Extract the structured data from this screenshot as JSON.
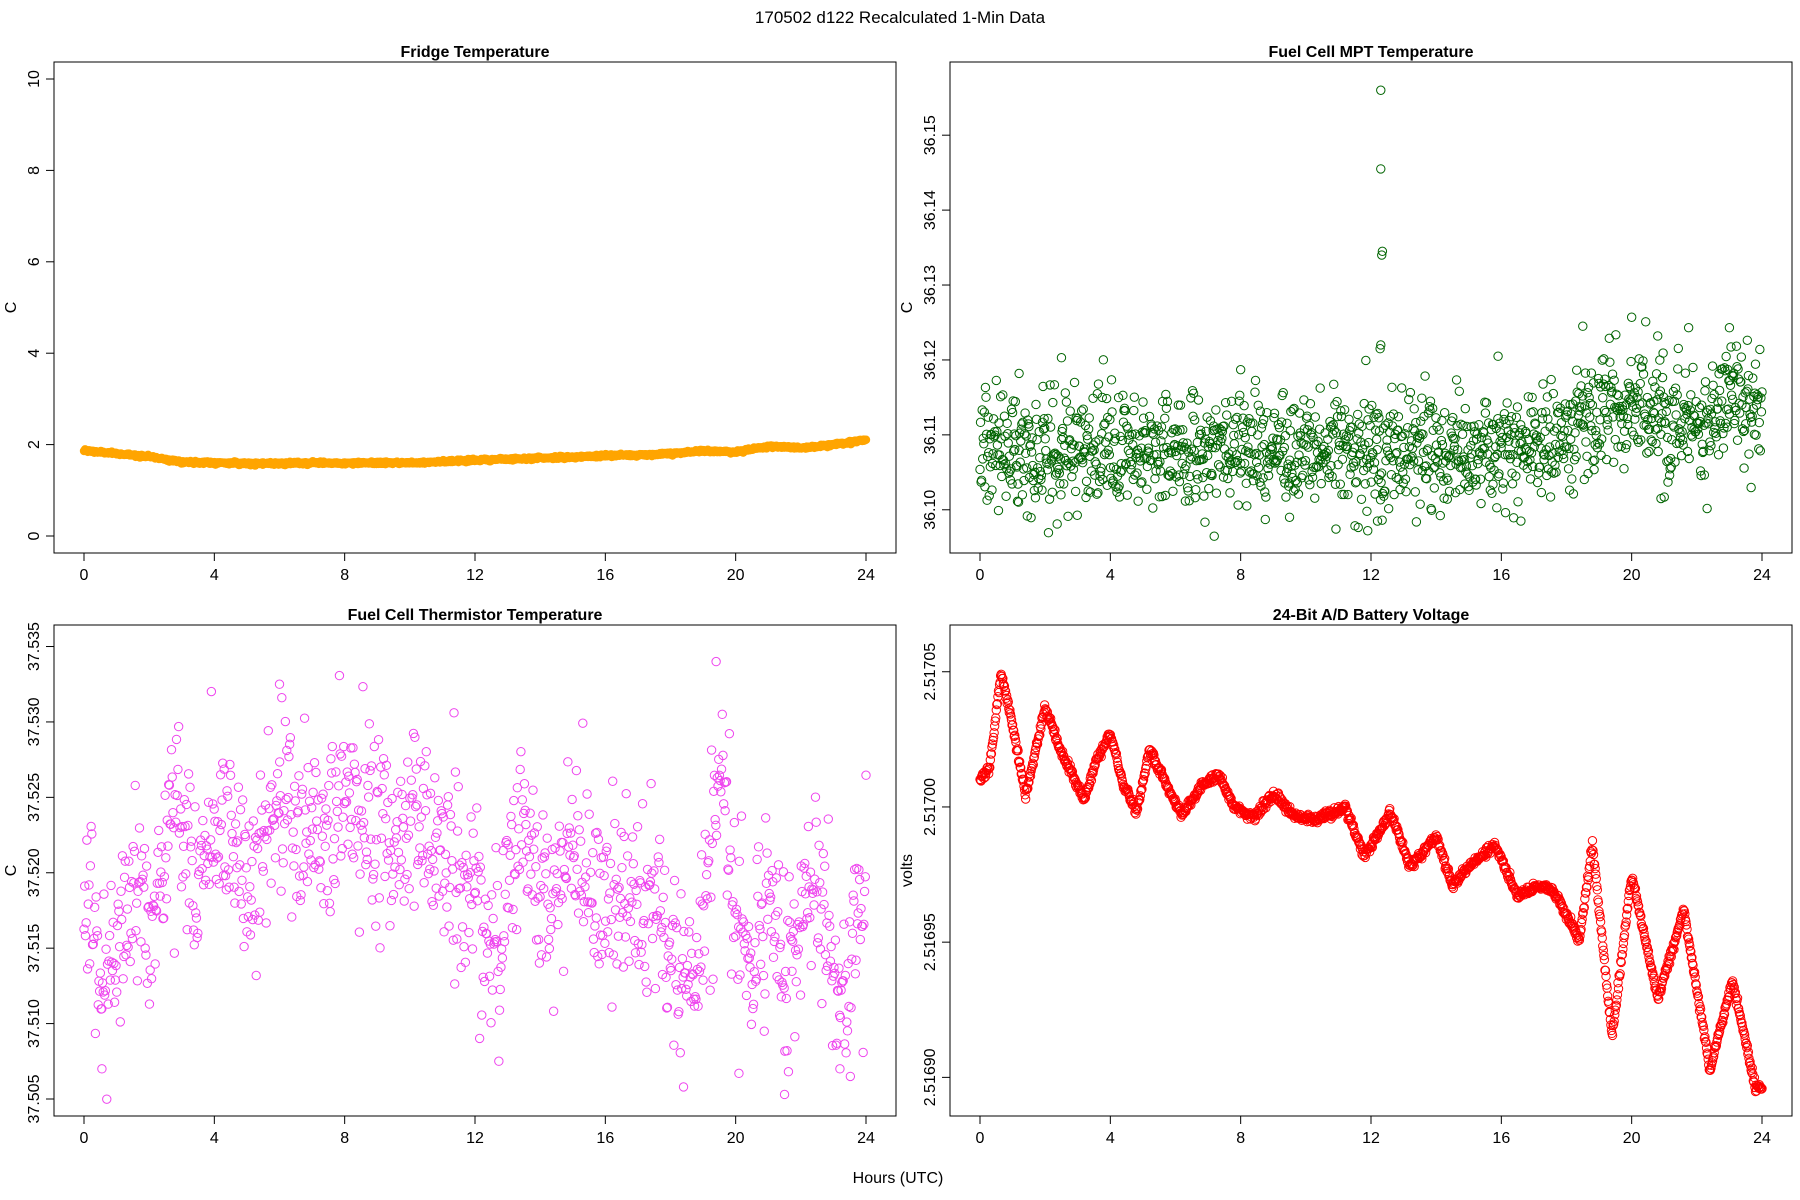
{
  "figure": {
    "title": "170502   d122   Recalculated 1-Min Data",
    "xlabel": "Hours (UTC)"
  },
  "chart_data": [
    {
      "type": "scatter",
      "title": "Fridge Temperature",
      "xlabel": "",
      "ylabel": "C",
      "xlim": [
        0,
        24
      ],
      "ylim": [
        0,
        10
      ],
      "xticks": [
        "0",
        "4",
        "8",
        "12",
        "16",
        "20",
        "24"
      ],
      "yticks": [
        "0",
        "2",
        "4",
        "6",
        "8",
        "10"
      ],
      "yticks_rotated": true,
      "marker": "filled-circle",
      "color": "#ffa500",
      "curve": [
        [
          0,
          1.87
        ],
        [
          1,
          1.8
        ],
        [
          2,
          1.74
        ],
        [
          3,
          1.62
        ],
        [
          4,
          1.6
        ],
        [
          5,
          1.59
        ],
        [
          6,
          1.58
        ],
        [
          7,
          1.6
        ],
        [
          8,
          1.59
        ],
        [
          9,
          1.6
        ],
        [
          10,
          1.6
        ],
        [
          11,
          1.63
        ],
        [
          12,
          1.66
        ],
        [
          13,
          1.68
        ],
        [
          14,
          1.71
        ],
        [
          15,
          1.72
        ],
        [
          16,
          1.76
        ],
        [
          17,
          1.77
        ],
        [
          18,
          1.8
        ],
        [
          19,
          1.86
        ],
        [
          20,
          1.84
        ],
        [
          21,
          1.96
        ],
        [
          22,
          1.93
        ],
        [
          23,
          2.0
        ],
        [
          24,
          2.11
        ]
      ],
      "noise": 0.015,
      "n_points": 1440
    },
    {
      "type": "scatter",
      "title": "Fuel Cell MPT Temperature",
      "xlabel": "",
      "ylabel": "C",
      "xlim": [
        0,
        24
      ],
      "ylim": [
        36.0965,
        36.1575
      ],
      "xticks": [
        "0",
        "4",
        "8",
        "12",
        "16",
        "20",
        "24"
      ],
      "yticks": [
        "36.10",
        "36.11",
        "36.12",
        "36.13",
        "36.14",
        "36.15"
      ],
      "yticks_rotated": true,
      "marker": "open-circle",
      "color": "#006400",
      "curve": [
        [
          0,
          36.109
        ],
        [
          1,
          36.108
        ],
        [
          2,
          36.108
        ],
        [
          4,
          36.108
        ],
        [
          8,
          36.108
        ],
        [
          12,
          36.108
        ],
        [
          15,
          36.108
        ],
        [
          16,
          36.108
        ],
        [
          18,
          36.11
        ],
        [
          19,
          36.113
        ],
        [
          20,
          36.113
        ],
        [
          22,
          36.112
        ],
        [
          23,
          36.115
        ],
        [
          24,
          36.113
        ]
      ],
      "noise": 0.0038,
      "n_points": 1440,
      "outliers": [
        [
          12.3,
          36.156
        ],
        [
          12.3,
          36.1455
        ],
        [
          12.35,
          36.1345
        ],
        [
          12.33,
          36.134
        ],
        [
          12.3,
          36.122
        ],
        [
          12.28,
          36.1215
        ],
        [
          2.5,
          36.1203
        ],
        [
          15.9,
          36.1205
        ],
        [
          8.0,
          36.1187
        ],
        [
          1.2,
          36.1182
        ],
        [
          18.5,
          36.1245
        ],
        [
          20.0,
          36.1257
        ],
        [
          23.0,
          36.1243
        ],
        [
          20.8,
          36.1232
        ],
        [
          11.9,
          36.0972
        ],
        [
          12.2,
          36.0985
        ],
        [
          20.9,
          36.1015
        ],
        [
          21.0,
          36.1017
        ],
        [
          16.6,
          36.0985
        ],
        [
          9.5,
          36.099
        ]
      ]
    },
    {
      "type": "scatter",
      "title": "Fuel Cell Thermistor Temperature",
      "xlabel": "",
      "ylabel": "C",
      "xlim": [
        0,
        24
      ],
      "ylim": [
        37.505,
        37.5353
      ],
      "xticks": [
        "0",
        "4",
        "8",
        "12",
        "16",
        "20",
        "24"
      ],
      "yticks": [
        "37.505",
        "37.510",
        "37.515",
        "37.520",
        "37.525",
        "37.530",
        "37.535"
      ],
      "yticks_rotated": true,
      "marker": "open-circle",
      "color": "#ee44ee",
      "curve": [
        [
          0,
          37.518
        ],
        [
          0.5,
          37.512
        ],
        [
          1,
          37.516
        ],
        [
          1.5,
          37.52
        ],
        [
          2,
          37.516
        ],
        [
          2.5,
          37.522
        ],
        [
          3,
          37.524
        ],
        [
          3.5,
          37.52
        ],
        [
          4,
          37.523
        ],
        [
          4.5,
          37.523
        ],
        [
          5,
          37.519
        ],
        [
          5.5,
          37.521
        ],
        [
          6,
          37.525
        ],
        [
          7,
          37.522
        ],
        [
          8,
          37.525
        ],
        [
          9,
          37.522
        ],
        [
          10,
          37.524
        ],
        [
          11,
          37.521
        ],
        [
          12,
          37.519
        ],
        [
          12.5,
          37.515
        ],
        [
          13,
          37.519
        ],
        [
          13.5,
          37.523
        ],
        [
          14,
          37.518
        ],
        [
          15,
          37.521
        ],
        [
          16,
          37.517
        ],
        [
          17,
          37.519
        ],
        [
          18,
          37.515
        ],
        [
          18.5,
          37.511
        ],
        [
          19,
          37.515
        ],
        [
          19.5,
          37.527
        ],
        [
          20,
          37.516
        ],
        [
          20.5,
          37.514
        ],
        [
          21,
          37.52
        ],
        [
          21.5,
          37.513
        ],
        [
          22,
          37.517
        ],
        [
          22.5,
          37.521
        ],
        [
          23,
          37.513
        ],
        [
          23.5,
          37.512
        ],
        [
          24,
          37.52
        ]
      ],
      "noise": 0.0032,
      "n_points": 1100,
      "outliers": [
        [
          19.4,
          37.534
        ],
        [
          6.0,
          37.5325
        ],
        [
          0.55,
          37.507
        ],
        [
          18.4,
          37.5058
        ],
        [
          21.5,
          37.5053
        ],
        [
          23.2,
          37.507
        ],
        [
          20.1,
          37.5067
        ]
      ]
    },
    {
      "type": "scatter",
      "title": "24-Bit A/D Battery Voltage",
      "xlabel": "",
      "ylabel": "volts",
      "xlim": [
        0,
        24
      ],
      "ylim": [
        2.516892,
        2.517061
      ],
      "xticks": [
        "0",
        "4",
        "8",
        "12",
        "16",
        "20",
        "24"
      ],
      "yticks": [
        "2.51690",
        "2.51695",
        "2.51700",
        "2.51705"
      ],
      "yticks_rotated": true,
      "marker": "open-circle",
      "color": "#ff0000",
      "curve": [
        [
          0,
          2.51701
        ],
        [
          0.3,
          2.517015
        ],
        [
          0.65,
          2.51705
        ],
        [
          1,
          2.51703
        ],
        [
          1.4,
          2.517004
        ],
        [
          2,
          2.517037
        ],
        [
          2.5,
          2.51702
        ],
        [
          3.2,
          2.517003
        ],
        [
          3.6,
          2.517018
        ],
        [
          4,
          2.517027
        ],
        [
          4.4,
          2.517008
        ],
        [
          4.8,
          2.516998
        ],
        [
          5.2,
          2.517021
        ],
        [
          6.2,
          2.516997
        ],
        [
          6.8,
          2.517008
        ],
        [
          7.3,
          2.517012
        ],
        [
          7.8,
          2.517
        ],
        [
          8.4,
          2.516996
        ],
        [
          9.0,
          2.517005
        ],
        [
          9.6,
          2.516997
        ],
        [
          10.3,
          2.516995
        ],
        [
          11.2,
          2.517
        ],
        [
          11.8,
          2.516982
        ],
        [
          12.6,
          2.516998
        ],
        [
          13.2,
          2.516978
        ],
        [
          14,
          2.516989
        ],
        [
          14.5,
          2.516971
        ],
        [
          15.0,
          2.516978
        ],
        [
          15.8,
          2.516986
        ],
        [
          16.5,
          2.516967
        ],
        [
          17.1,
          2.516971
        ],
        [
          17.6,
          2.516969
        ],
        [
          18.4,
          2.516951
        ],
        [
          18.8,
          2.516986
        ],
        [
          19.4,
          2.516915
        ],
        [
          20.0,
          2.516975
        ],
        [
          20.8,
          2.516929
        ],
        [
          21.6,
          2.516962
        ],
        [
          22.4,
          2.516903
        ],
        [
          23.1,
          2.516936
        ],
        [
          23.8,
          2.516896
        ],
        [
          24,
          2.516896
        ]
      ],
      "noise": 8e-07,
      "n_points": 1440
    }
  ]
}
